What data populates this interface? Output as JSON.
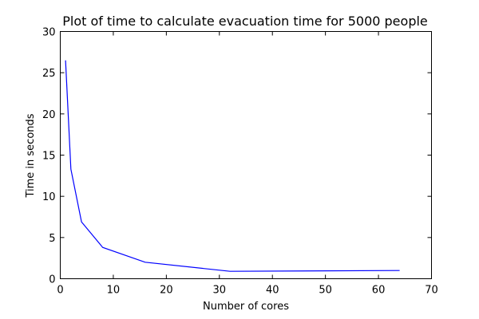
{
  "chart_data": {
    "type": "line",
    "title": "Plot of time to calculate evacuation time for 5000 people",
    "xlabel": "Number of cores",
    "ylabel": "Time in seconds",
    "xlim": [
      0,
      70
    ],
    "ylim": [
      0,
      30
    ],
    "xticks": [
      0,
      10,
      20,
      30,
      40,
      50,
      60,
      70
    ],
    "yticks": [
      0,
      5,
      10,
      15,
      20,
      25,
      30
    ],
    "grid": false,
    "color": "#0000ff",
    "series": [
      {
        "x": [
          1,
          2,
          4,
          8,
          16,
          32,
          64
        ],
        "y": [
          26.5,
          13.3,
          6.9,
          3.8,
          2.0,
          0.9,
          1.0
        ]
      }
    ]
  }
}
